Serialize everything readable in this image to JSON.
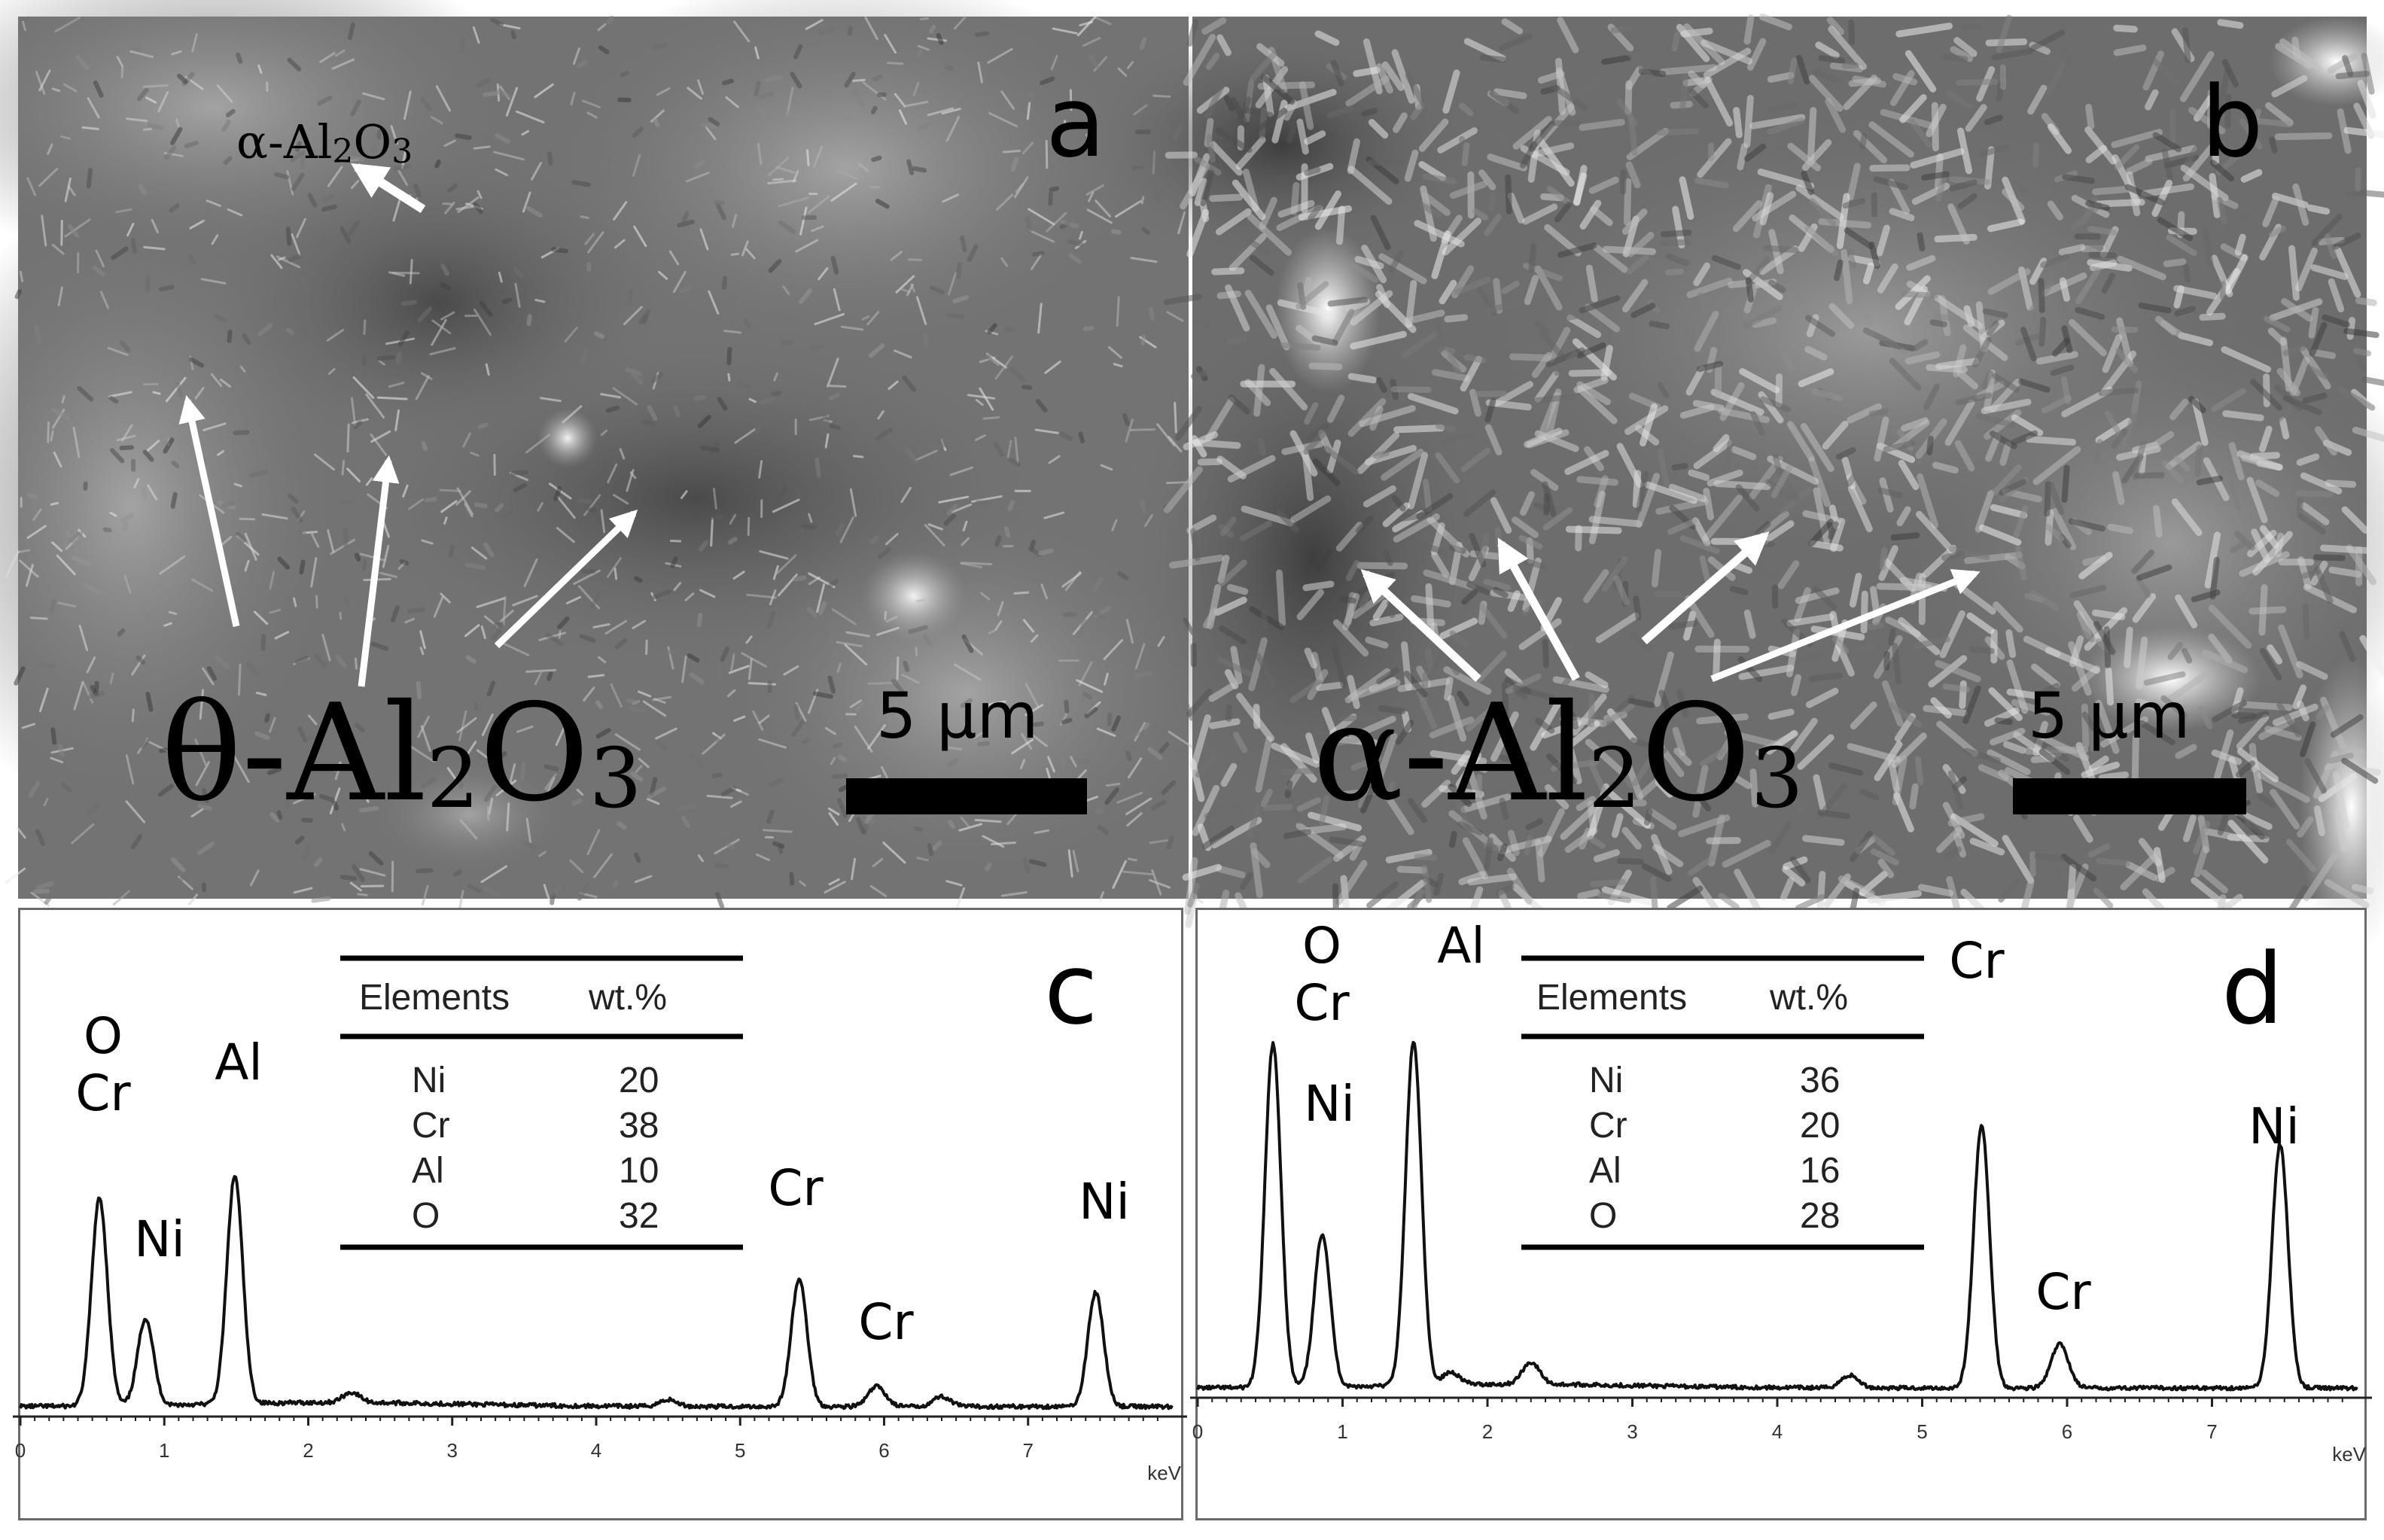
{
  "panel_a": {
    "letter": "a",
    "label_top": "α-Al2O3",
    "label_top_parts": [
      "α-Al",
      "2",
      "O",
      "3"
    ],
    "label_bottom": "θ-Al2O3",
    "label_bottom_parts": [
      "θ-Al",
      "2",
      "O",
      "3"
    ],
    "scale_bar": "5 μm"
  },
  "panel_b": {
    "letter": "b",
    "label_bottom": "α-Al2O3",
    "label_bottom_parts": [
      "α-Al",
      "2",
      "O",
      "3"
    ],
    "scale_bar": "5 μm"
  },
  "colors": {
    "sem_base": "#6f6f6f",
    "spectrum_line": "#111111",
    "frame": "#6a6a6a"
  },
  "chart_data": [
    {
      "panel": "c",
      "type": "line",
      "xlabel": "keV",
      "xlim": [
        0,
        8
      ],
      "x_ticks": [
        "0",
        "1",
        "2",
        "3",
        "4",
        "5",
        "6",
        "7"
      ],
      "peaks": [
        {
          "x": 0.55,
          "height": 0.62,
          "labels": [
            "O",
            "Cr"
          ]
        },
        {
          "x": 0.87,
          "height": 0.26,
          "labels": [
            "Ni"
          ]
        },
        {
          "x": 1.49,
          "height": 0.68,
          "labels": [
            "Al"
          ]
        },
        {
          "x": 5.41,
          "height": 0.38,
          "labels": [
            "Cr"
          ]
        },
        {
          "x": 5.95,
          "height": 0.06,
          "labels": [
            "Cr"
          ]
        },
        {
          "x": 7.47,
          "height": 0.34,
          "labels": [
            "Ni"
          ]
        }
      ],
      "minor_peaks": [
        {
          "x": 2.3,
          "height": 0.03
        },
        {
          "x": 4.5,
          "height": 0.02
        },
        {
          "x": 6.4,
          "height": 0.03
        }
      ],
      "table": {
        "headers": [
          "Elements",
          "wt.%"
        ],
        "rows": [
          [
            "Ni",
            "20"
          ],
          [
            "Cr",
            "38"
          ],
          [
            "Al",
            "10"
          ],
          [
            "O",
            "32"
          ]
        ]
      }
    },
    {
      "panel": "d",
      "type": "line",
      "xlabel": "keV",
      "xlim": [
        0,
        8
      ],
      "x_ticks": [
        "0",
        "1",
        "2",
        "3",
        "4",
        "5",
        "6",
        "7"
      ],
      "peaks": [
        {
          "x": 0.52,
          "height": 1.1,
          "labels": [
            "O",
            "Cr"
          ]
        },
        {
          "x": 0.86,
          "height": 0.49,
          "labels": [
            "Ni"
          ]
        },
        {
          "x": 1.49,
          "height": 1.1,
          "labels": [
            "Al"
          ]
        },
        {
          "x": 5.41,
          "height": 0.84,
          "labels": [
            "Cr"
          ]
        },
        {
          "x": 5.95,
          "height": 0.14,
          "labels": [
            "Cr"
          ]
        },
        {
          "x": 7.47,
          "height": 0.78,
          "labels": [
            "Ni"
          ]
        }
      ],
      "minor_peaks": [
        {
          "x": 1.75,
          "height": 0.04
        },
        {
          "x": 2.3,
          "height": 0.07
        },
        {
          "x": 4.5,
          "height": 0.04
        }
      ],
      "table": {
        "headers": [
          "Elements",
          "wt.%"
        ],
        "rows": [
          [
            "Ni",
            "36"
          ],
          [
            "Cr",
            "20"
          ],
          [
            "Al",
            "16"
          ],
          [
            "O",
            "28"
          ]
        ]
      }
    }
  ]
}
